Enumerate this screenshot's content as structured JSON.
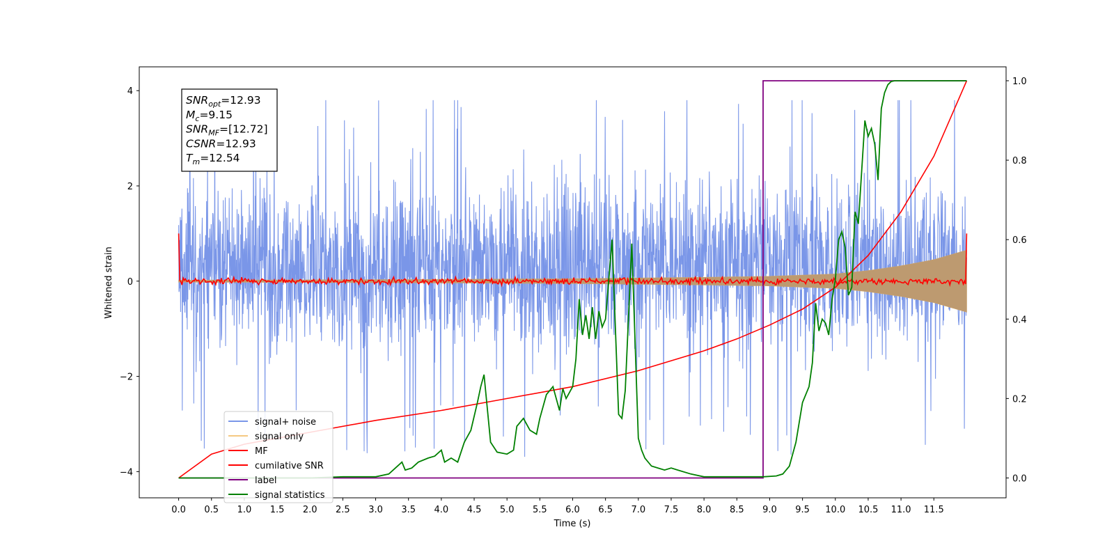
{
  "chart_data": {
    "type": "line",
    "xlabel": "Time (s)",
    "ylabel": "Whitened strain",
    "xlim": [
      -0.6,
      12.6
    ],
    "ylim": [
      -4.55,
      4.5
    ],
    "ylim_right": [
      -0.05,
      1.035
    ],
    "x_ticks": [
      "0.0",
      "0.5",
      "1.0",
      "1.5",
      "2.0",
      "2.5",
      "3.0",
      "3.5",
      "4.0",
      "4.5",
      "5.0",
      "5.5",
      "6.0",
      "6.5",
      "7.0",
      "7.5",
      "8.0",
      "8.5",
      "9.0",
      "9.5",
      "10.0",
      "10.5",
      "11.0",
      "11.5"
    ],
    "y_ticks_left": [
      "−4",
      "−2",
      "0",
      "2",
      "4"
    ],
    "y_ticks_right": [
      "0.0",
      "0.2",
      "0.4",
      "0.6",
      "0.8",
      "1.0"
    ],
    "grid": false,
    "legend_position": "lower-left",
    "legend": [
      {
        "label": "signal+ noise",
        "color": "#7a96e8"
      },
      {
        "label": "signal only",
        "color": "#f5c882"
      },
      {
        "label": "MF",
        "color": "#ff0000"
      },
      {
        "label": "cumilative SNR",
        "color": "#ff0000"
      },
      {
        "label": "label",
        "color": "#800080"
      },
      {
        "label": "signal statistics",
        "color": "#008000"
      }
    ],
    "annotation": {
      "lines": [
        {
          "base": "SNR",
          "sub": "opt",
          "rest": "=12.93"
        },
        {
          "base": "M",
          "sub": "c",
          "rest": "=9.15"
        },
        {
          "base": "SNR",
          "sub": "MF",
          "rest": "=[12.72]"
        },
        {
          "base": "CSNR",
          "sub": "",
          "rest": "=12.93"
        },
        {
          "base": "T",
          "sub": "m",
          "rest": "=12.54"
        }
      ]
    },
    "series": [
      {
        "name": "signal+ noise",
        "axis": "left",
        "kind": "noise_band",
        "x_range": [
          0.0,
          12.0
        ],
        "typical_range": [
          -1.7,
          2.3
        ],
        "extreme_range": [
          -4.05,
          3.8
        ]
      },
      {
        "name": "signal only",
        "axis": "left",
        "kind": "chirp_envelope",
        "x": [
          0.0,
          3.0,
          6.0,
          8.0,
          9.0,
          10.0,
          10.5,
          11.0,
          11.5,
          12.0
        ],
        "amplitude": [
          0.02,
          0.03,
          0.05,
          0.08,
          0.1,
          0.15,
          0.22,
          0.32,
          0.45,
          0.65
        ]
      },
      {
        "name": "MF",
        "axis": "left",
        "x_range": [
          0.0,
          12.0
        ],
        "start": 1.0,
        "end": 1.0,
        "baseline": 0.0,
        "noise_amplitude": 0.1
      },
      {
        "name": "cumilative SNR",
        "axis": "right",
        "x": [
          0.0,
          0.5,
          1.0,
          2.0,
          3.0,
          4.0,
          5.0,
          6.0,
          7.0,
          8.0,
          8.5,
          9.0,
          9.5,
          10.0,
          10.5,
          11.0,
          11.5,
          12.0
        ],
        "y": [
          0.0,
          0.06,
          0.085,
          0.115,
          0.145,
          0.17,
          0.2,
          0.23,
          0.27,
          0.32,
          0.35,
          0.385,
          0.425,
          0.48,
          0.56,
          0.67,
          0.81,
          1.0
        ]
      },
      {
        "name": "label",
        "axis": "right",
        "x": [
          0.0,
          8.9,
          8.9,
          12.0
        ],
        "y": [
          0.0,
          0.0,
          1.0,
          1.0
        ]
      },
      {
        "name": "signal statistics",
        "axis": "right",
        "x": [
          0.0,
          1.0,
          2.0,
          2.5,
          3.0,
          3.2,
          3.4,
          3.45,
          3.55,
          3.65,
          3.8,
          3.9,
          4.0,
          4.05,
          4.15,
          4.25,
          4.35,
          4.45,
          4.55,
          4.6,
          4.65,
          4.75,
          4.85,
          5.0,
          5.1,
          5.15,
          5.25,
          5.35,
          5.45,
          5.5,
          5.6,
          5.7,
          5.8,
          5.85,
          5.9,
          6.0,
          6.05,
          6.1,
          6.15,
          6.2,
          6.25,
          6.3,
          6.35,
          6.4,
          6.45,
          6.5,
          6.6,
          6.7,
          6.75,
          6.8,
          6.9,
          7.0,
          7.05,
          7.1,
          7.2,
          7.3,
          7.4,
          7.5,
          7.6,
          7.8,
          8.0,
          8.2,
          8.4,
          8.6,
          8.9,
          9.1,
          9.2,
          9.3,
          9.4,
          9.5,
          9.6,
          9.65,
          9.7,
          9.75,
          9.8,
          9.85,
          9.9,
          9.95,
          10.0,
          10.05,
          10.1,
          10.15,
          10.2,
          10.25,
          10.3,
          10.35,
          10.4,
          10.45,
          10.5,
          10.55,
          10.6,
          10.65,
          10.7,
          10.75,
          10.8,
          10.85,
          10.9,
          10.95,
          11.0,
          11.05,
          11.1,
          11.15,
          11.2,
          11.3,
          11.4,
          11.5,
          12.0
        ],
        "y": [
          0.0,
          0.0,
          0.0,
          0.003,
          0.003,
          0.01,
          0.04,
          0.02,
          0.025,
          0.04,
          0.05,
          0.055,
          0.07,
          0.04,
          0.05,
          0.04,
          0.09,
          0.12,
          0.19,
          0.23,
          0.26,
          0.09,
          0.065,
          0.06,
          0.07,
          0.13,
          0.15,
          0.12,
          0.11,
          0.15,
          0.21,
          0.23,
          0.17,
          0.225,
          0.2,
          0.23,
          0.3,
          0.45,
          0.36,
          0.41,
          0.35,
          0.43,
          0.35,
          0.42,
          0.38,
          0.4,
          0.6,
          0.16,
          0.15,
          0.22,
          0.59,
          0.1,
          0.07,
          0.05,
          0.03,
          0.025,
          0.02,
          0.025,
          0.02,
          0.01,
          0.003,
          0.003,
          0.003,
          0.003,
          0.003,
          0.005,
          0.01,
          0.03,
          0.09,
          0.19,
          0.23,
          0.29,
          0.44,
          0.37,
          0.4,
          0.39,
          0.36,
          0.45,
          0.5,
          0.6,
          0.62,
          0.58,
          0.46,
          0.48,
          0.67,
          0.64,
          0.77,
          0.9,
          0.86,
          0.88,
          0.84,
          0.75,
          0.93,
          0.97,
          0.99,
          0.998,
          1.0,
          1.0,
          1.0,
          1.0,
          1.0,
          1.0,
          1.0,
          1.0,
          1.0,
          1.0,
          1.0
        ]
      }
    ]
  }
}
